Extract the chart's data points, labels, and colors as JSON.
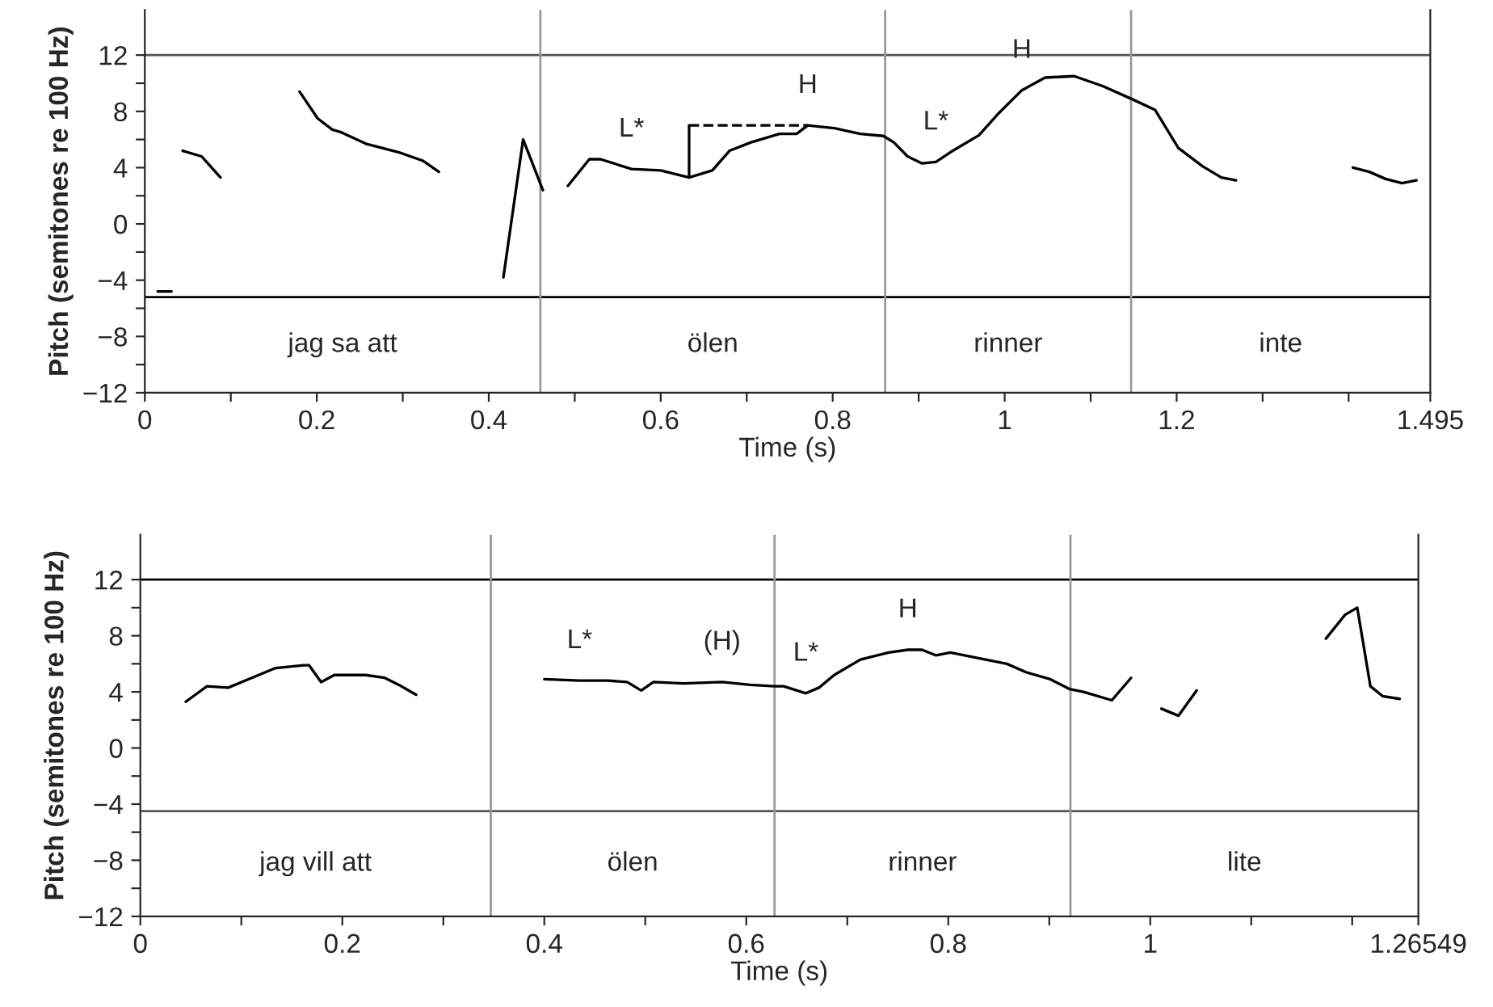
{
  "chart_data": [
    {
      "type": "line",
      "xlabel": "Time (s)",
      "ylabel": "Pitch (semitones re 100 Hz)",
      "xlim": [
        0,
        1.495
      ],
      "ylim": [
        -12,
        15.2
      ],
      "xticks": [
        0,
        {
          "value": 0.1,
          "label": null
        },
        0.2,
        {
          "value": 0.3,
          "label": null
        },
        0.4,
        {
          "value": 0.5,
          "label": null
        },
        0.6,
        {
          "value": 0.7,
          "label": null
        },
        0.8,
        {
          "value": 0.9,
          "label": null
        },
        1,
        {
          "value": 1.1,
          "label": null
        },
        1.2,
        {
          "value": 1.3,
          "label": null
        },
        {
          "value": 1.4,
          "label": null
        },
        1.495
      ],
      "yticks": [
        {
          "value": -12,
          "label": "−12"
        },
        {
          "value": -10,
          "label": null
        },
        {
          "value": -8,
          "label": "−8"
        },
        {
          "value": -6,
          "label": null
        },
        {
          "value": -4,
          "label": "−4"
        },
        {
          "value": -2,
          "label": null
        },
        0,
        {
          "value": 2,
          "label": null
        },
        4,
        {
          "value": 6,
          "label": null
        },
        8,
        {
          "value": 10,
          "label": null
        },
        12
      ],
      "grid": false,
      "legend": false,
      "marker": "none",
      "line_style": "solid",
      "series": [
        {
          "color": "#000000",
          "x": [
            0.015,
            0.031
          ],
          "values": [
            -4.8,
            -4.8
          ]
        },
        {
          "color": "#000000",
          "x": [
            0.044,
            0.066,
            0.088
          ],
          "values": [
            5.2,
            4.8,
            3.3
          ]
        },
        {
          "color": "#000000",
          "x": [
            0.18,
            0.201,
            0.218,
            0.229,
            0.257,
            0.295,
            0.323,
            0.342
          ],
          "values": [
            9.4,
            7.5,
            6.7,
            6.5,
            5.7,
            5.1,
            4.5,
            3.7
          ]
        },
        {
          "color": "#000000",
          "x": [
            0.417,
            0.44,
            0.463
          ],
          "values": [
            -3.8,
            6.0,
            2.4
          ]
        },
        {
          "color": "#000000",
          "x": [
            0.492,
            0.517,
            0.53,
            0.566,
            0.6,
            0.633,
            0.66,
            0.68,
            0.705,
            0.738,
            0.758,
            0.771,
            0.802,
            0.832,
            0.859,
            0.871,
            0.887,
            0.904,
            0.92,
            0.937,
            0.97,
            0.992,
            1.02,
            1.047,
            1.081,
            1.114,
            1.147,
            1.175,
            1.202,
            1.23,
            1.252,
            1.269
          ],
          "values": [
            2.7,
            4.6,
            4.6,
            3.9,
            3.8,
            3.3,
            3.8,
            5.2,
            5.8,
            6.4,
            6.4,
            7.0,
            6.8,
            6.4,
            6.25,
            5.8,
            4.8,
            4.3,
            4.4,
            5.1,
            6.3,
            7.8,
            9.5,
            10.4,
            10.5,
            9.8,
            8.9,
            8.1,
            5.4,
            4.1,
            3.3,
            3.1
          ]
        },
        {
          "color": "#000000",
          "x": [
            1.405,
            1.424,
            1.443,
            1.462,
            1.479
          ],
          "values": [
            4.0,
            3.7,
            3.2,
            2.9,
            3.1
          ]
        },
        {
          "color": "#000000",
          "x": [
            0.633,
            0.771
          ],
          "values": [
            7.0,
            7.0
          ],
          "line_style": "dashed"
        },
        {
          "color": "#000000",
          "x": [
            0.633,
            0.633
          ],
          "values": [
            3.3,
            7.0
          ]
        }
      ],
      "ref_lines": [
        {
          "axis": "y",
          "value": 12,
          "color": "#555555"
        },
        {
          "axis": "y",
          "value": -5.2,
          "color": "#000000"
        },
        {
          "axis": "x",
          "value": 0.46,
          "color": "#999999"
        },
        {
          "axis": "x",
          "value": 0.861,
          "color": "#999999"
        },
        {
          "axis": "x",
          "value": 1.147,
          "color": "#999999"
        }
      ],
      "annotations": [
        {
          "text": "L*",
          "x": 0.566,
          "y": 3.9
        },
        {
          "text": "H",
          "x": 0.771,
          "y": 7.0
        },
        {
          "text": "L*",
          "x": 0.92,
          "y": 4.4
        },
        {
          "text": "H",
          "x": 1.02,
          "y": 9.5
        },
        "jag sa att",
        "ölen",
        "rinner",
        "inte"
      ]
    },
    {
      "type": "line",
      "xlabel": "Time (s)",
      "ylabel": "Pitch (semitones re 100 Hz)",
      "xlim": [
        0,
        1.26549
      ],
      "ylim": [
        -12,
        15.2
      ],
      "xticks": [
        0,
        {
          "value": 0.1,
          "label": null
        },
        0.2,
        {
          "value": 0.3,
          "label": null
        },
        0.4,
        {
          "value": 0.5,
          "label": null
        },
        0.6,
        {
          "value": 0.7,
          "label": null
        },
        0.8,
        {
          "value": 0.9,
          "label": null
        },
        1,
        {
          "value": 1.1,
          "label": null
        },
        {
          "value": 1.2,
          "label": null
        },
        1.26549
      ],
      "yticks": [
        {
          "value": -12,
          "label": "−12"
        },
        {
          "value": -10,
          "label": null
        },
        {
          "value": -8,
          "label": "−8"
        },
        {
          "value": -6,
          "label": null
        },
        {
          "value": -4,
          "label": "−4"
        },
        {
          "value": -2,
          "label": null
        },
        0,
        {
          "value": 2,
          "label": null
        },
        4,
        {
          "value": 6,
          "label": null
        },
        8,
        {
          "value": 10,
          "label": null
        },
        12
      ],
      "grid": false,
      "legend": false,
      "marker": "none",
      "line_style": "solid",
      "series": [
        {
          "color": "#000000",
          "x": [
            0.045,
            0.066,
            0.087,
            0.107,
            0.134,
            0.162,
            0.167,
            0.179,
            0.192,
            0.223,
            0.242,
            0.256,
            0.273
          ],
          "values": [
            3.3,
            4.4,
            4.3,
            4.9,
            5.7,
            5.9,
            5.9,
            4.7,
            5.2,
            5.2,
            5.0,
            4.5,
            3.8
          ]
        },
        {
          "color": "#000000",
          "x": [
            0.4,
            0.435,
            0.463,
            0.482,
            0.496,
            0.508,
            0.538,
            0.576,
            0.604,
            0.628,
            0.637,
            0.659,
            0.672,
            0.687,
            0.713,
            0.741,
            0.76,
            0.774,
            0.788,
            0.802,
            0.83,
            0.858,
            0.877,
            0.901,
            0.92,
            0.934,
            0.962,
            0.981
          ],
          "values": [
            4.9,
            4.8,
            4.8,
            4.7,
            4.1,
            4.7,
            4.6,
            4.7,
            4.5,
            4.4,
            4.4,
            3.9,
            4.3,
            5.2,
            6.3,
            6.8,
            7.0,
            7.0,
            6.6,
            6.8,
            6.4,
            6.0,
            5.4,
            4.9,
            4.2,
            4.0,
            3.4,
            5.0
          ]
        },
        {
          "color": "#000000",
          "x": [
            1.011,
            1.028,
            1.046
          ],
          "values": [
            2.8,
            2.3,
            4.1
          ]
        },
        {
          "color": "#000000",
          "x": [
            1.174,
            1.193,
            1.205,
            1.218,
            1.23,
            1.247
          ],
          "values": [
            7.8,
            9.5,
            10.0,
            4.4,
            3.7,
            3.5
          ]
        }
      ],
      "ref_lines": [
        {
          "axis": "y",
          "value": 12,
          "color": "#000000"
        },
        {
          "axis": "y",
          "value": -4.5,
          "color": "#555555"
        },
        {
          "axis": "x",
          "value": 0.347,
          "color": "#999999"
        },
        {
          "axis": "x",
          "value": 0.628,
          "color": "#999999"
        },
        {
          "axis": "x",
          "value": 0.921,
          "color": "#999999"
        }
      ],
      "annotations": [
        {
          "text": "L*",
          "x": 0.435,
          "y": 4.8
        },
        {
          "text": "(H)",
          "x": 0.576,
          "y": 4.7
        },
        {
          "text": "L*",
          "x": 0.659,
          "y": 3.9
        },
        {
          "text": "H",
          "x": 0.76,
          "y": 7.0
        },
        "jag vill att",
        "ölen",
        "rinner",
        "lite"
      ]
    }
  ]
}
